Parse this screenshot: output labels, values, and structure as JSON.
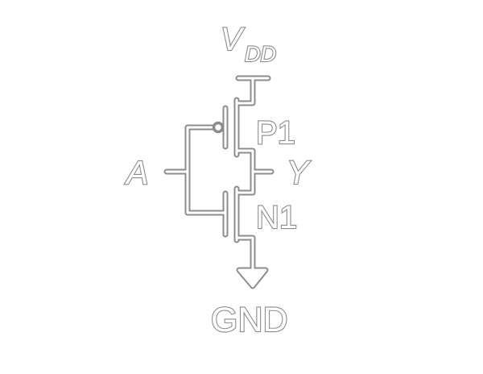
{
  "labels": {
    "vdd_main": "V",
    "vdd_sub": "DD",
    "input": "A",
    "output": "Y",
    "pmos": "P1",
    "nmos": "N1",
    "ground": "GND"
  },
  "colors": {
    "stroke": "#8c8c8c",
    "fill": "#ffffff",
    "background": "#ffffff"
  }
}
